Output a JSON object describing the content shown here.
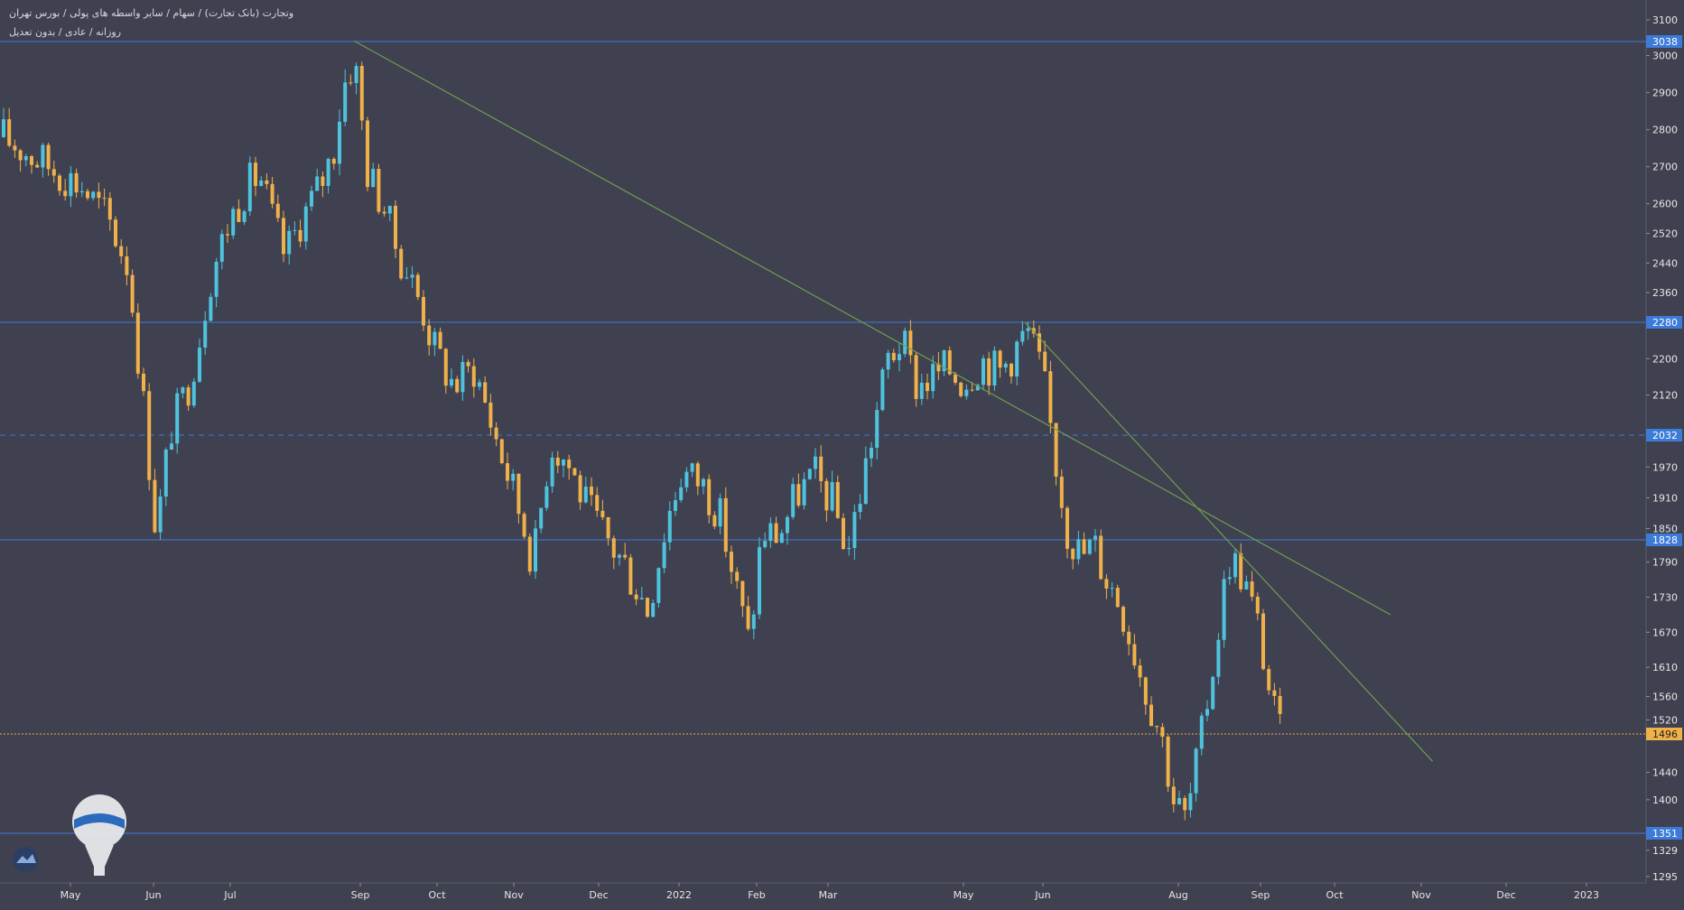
{
  "header": {
    "title": "وتجارت (بانک تجارت) / سهام / سایر واسطه های پولی / بورس تهران",
    "subtitle": "روزانه / عادی / بدون تعدیل"
  },
  "colors": {
    "background": "#3f4150",
    "up": "#4fc3dd",
    "down": "#f0b14a",
    "level": "#3d7bd9",
    "trend": "#6f9e4e",
    "current": "#f0b14a",
    "axis_text": "#e6e6e6"
  },
  "chart_data": {
    "type": "candlestick",
    "y_ticks": [
      3100,
      3000,
      2900,
      2800,
      2700,
      2600,
      2520,
      2440,
      2360,
      2280,
      2200,
      2120,
      1970,
      1910,
      1850,
      1790,
      1730,
      1670,
      1610,
      1560,
      1520,
      1440,
      1400,
      1329,
      1295
    ],
    "x_ticks": [
      {
        "label": "May",
        "date": "2021-05-01"
      },
      {
        "label": "Jun",
        "date": "2021-06-01"
      },
      {
        "label": "Jul",
        "date": "2021-07-01"
      },
      {
        "label": "Sep",
        "date": "2021-09-01"
      },
      {
        "label": "Oct",
        "date": "2021-10-01"
      },
      {
        "label": "Nov",
        "date": "2021-11-01"
      },
      {
        "label": "Dec",
        "date": "2021-12-01"
      },
      {
        "label": "2022",
        "date": "2022-01-01"
      },
      {
        "label": "Feb",
        "date": "2022-02-01"
      },
      {
        "label": "Mar",
        "date": "2022-03-01"
      },
      {
        "label": "May",
        "date": "2022-05-01"
      },
      {
        "label": "Jun",
        "date": "2022-06-01"
      },
      {
        "label": "Aug",
        "date": "2022-08-01"
      },
      {
        "label": "Sep",
        "date": "2022-09-01"
      },
      {
        "label": "Oct",
        "date": "2022-10-01"
      },
      {
        "label": "Nov",
        "date": "2022-11-01"
      },
      {
        "label": "Dec",
        "date": "2022-12-01"
      },
      {
        "label": "2023",
        "date": "2023-01-01"
      }
    ],
    "levels": [
      {
        "value": 3038,
        "label": "3038",
        "style": "solid"
      },
      {
        "value": 2280,
        "label": "2280",
        "style": "solid"
      },
      {
        "value": 2032,
        "label": "2032",
        "style": "dashed"
      },
      {
        "value": 1828,
        "label": "1828",
        "style": "solid"
      },
      {
        "value": 1351,
        "label": "1351",
        "style": "solid"
      }
    ],
    "current_price": {
      "value": 1496,
      "label": "1496"
    },
    "trendlines": [
      {
        "from": {
          "date": "2021-08-29",
          "price": 3040
        },
        "to": {
          "date": "2022-10-21",
          "price": 1700
        }
      },
      {
        "from": {
          "date": "2022-05-25",
          "price": 2280
        },
        "to": {
          "date": "2022-11-05",
          "price": 1456
        }
      }
    ],
    "price_path": [
      [
        "2021-04-11",
        2780
      ],
      [
        "2021-04-25",
        2700
      ],
      [
        "2021-05-05",
        2650
      ],
      [
        "2021-05-15",
        2560
      ],
      [
        "2021-05-22",
        2440
      ],
      [
        "2021-05-27",
        2170
      ],
      [
        "2021-06-02",
        1840
      ],
      [
        "2021-06-08",
        2050
      ],
      [
        "2021-06-14",
        2130
      ],
      [
        "2021-06-19",
        2250
      ],
      [
        "2021-06-24",
        2420
      ],
      [
        "2021-07-01",
        2560
      ],
      [
        "2021-07-08",
        2640
      ],
      [
        "2021-07-15",
        2680
      ],
      [
        "2021-07-21",
        2560
      ],
      [
        "2021-07-27",
        2460
      ],
      [
        "2021-08-04",
        2560
      ],
      [
        "2021-08-12",
        2640
      ],
      [
        "2021-08-19",
        2740
      ],
      [
        "2021-08-24",
        2920
      ],
      [
        "2021-08-29",
        3000
      ],
      [
        "2021-09-04",
        2680
      ],
      [
        "2021-09-10",
        2600
      ],
      [
        "2021-09-16",
        2460
      ],
      [
        "2021-09-22",
        2380
      ],
      [
        "2021-09-30",
        2220
      ],
      [
        "2021-10-08",
        2140
      ],
      [
        "2021-10-16",
        2180
      ],
      [
        "2021-10-24",
        2040
      ],
      [
        "2021-11-01",
        1920
      ],
      [
        "2021-11-08",
        1790
      ],
      [
        "2021-11-14",
        2020
      ],
      [
        "2021-11-20",
        1980
      ],
      [
        "2021-11-27",
        1890
      ],
      [
        "2021-12-04",
        1830
      ],
      [
        "2021-12-12",
        1780
      ],
      [
        "2021-12-20",
        1710
      ],
      [
        "2021-12-28",
        1880
      ],
      [
        "2022-01-02",
        1960
      ],
      [
        "2022-01-10",
        1940
      ],
      [
        "2022-01-17",
        1880
      ],
      [
        "2022-01-23",
        1760
      ],
      [
        "2022-01-29",
        1650
      ],
      [
        "2022-02-03",
        1840
      ],
      [
        "2022-02-10",
        1840
      ],
      [
        "2022-02-17",
        1920
      ],
      [
        "2022-02-24",
        1950
      ],
      [
        "2022-03-03",
        1900
      ],
      [
        "2022-03-10",
        1810
      ],
      [
        "2022-03-16",
        1930
      ],
      [
        "2022-03-22",
        2060
      ],
      [
        "2022-03-28",
        2200
      ],
      [
        "2022-04-03",
        2240
      ],
      [
        "2022-04-10",
        2140
      ],
      [
        "2022-04-17",
        2160
      ],
      [
        "2022-04-24",
        2180
      ],
      [
        "2022-05-01",
        2150
      ],
      [
        "2022-05-08",
        2200
      ],
      [
        "2022-05-15",
        2170
      ],
      [
        "2022-05-21",
        2220
      ],
      [
        "2022-05-26",
        2260
      ],
      [
        "2022-06-01",
        2160
      ],
      [
        "2022-06-06",
        2000
      ],
      [
        "2022-06-12",
        1850
      ],
      [
        "2022-06-18",
        1800
      ],
      [
        "2022-06-24",
        1820
      ],
      [
        "2022-06-30",
        1760
      ],
      [
        "2022-07-06",
        1720
      ],
      [
        "2022-07-12",
        1640
      ],
      [
        "2022-07-18",
        1560
      ],
      [
        "2022-07-24",
        1500
      ],
      [
        "2022-07-30",
        1400
      ],
      [
        "2022-08-04",
        1370
      ],
      [
        "2022-08-10",
        1500
      ],
      [
        "2022-08-15",
        1640
      ],
      [
        "2022-08-20",
        1800
      ],
      [
        "2022-08-25",
        1770
      ],
      [
        "2022-08-31",
        1680
      ],
      [
        "2022-09-05",
        1560
      ],
      [
        "2022-09-09",
        1496
      ]
    ]
  }
}
